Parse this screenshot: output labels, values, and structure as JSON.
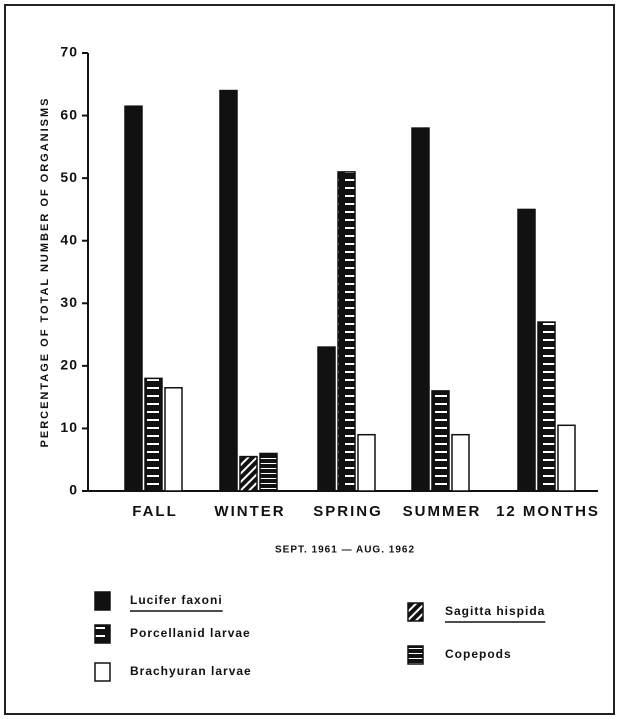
{
  "chart_data": {
    "type": "bar",
    "ylabel": "PERCENTAGE OF TOTAL NUMBER OF ORGANISMS",
    "xlabel": "SEPT. 1961 — AUG. 1962",
    "categories": [
      "FALL",
      "WINTER",
      "SPRING",
      "SUMMER",
      "12 MONTHS"
    ],
    "series": [
      {
        "name": "Lucifer faxoni",
        "color": "#111111",
        "pattern": "solid",
        "values": [
          61.5,
          64,
          23,
          58,
          45
        ]
      },
      {
        "name": "Porcellanid larvae",
        "color": "#111111",
        "pattern": "checker",
        "values": [
          18,
          null,
          51,
          16,
          27
        ]
      },
      {
        "name": "Brachyuran larvae",
        "color": "#ffffff",
        "pattern": "open",
        "values": [
          16.5,
          null,
          9,
          9,
          10.5
        ]
      },
      {
        "name": "Sagitta hispida",
        "color": "#111111",
        "pattern": "hatch",
        "values": [
          null,
          5.5,
          null,
          null,
          null
        ]
      },
      {
        "name": "Copepods",
        "color": "#111111",
        "pattern": "stripes",
        "values": [
          null,
          6,
          null,
          null,
          null
        ]
      }
    ],
    "ylim": [
      0,
      70
    ],
    "yticks": [
      0,
      10,
      20,
      30,
      40,
      50,
      60,
      70
    ]
  }
}
